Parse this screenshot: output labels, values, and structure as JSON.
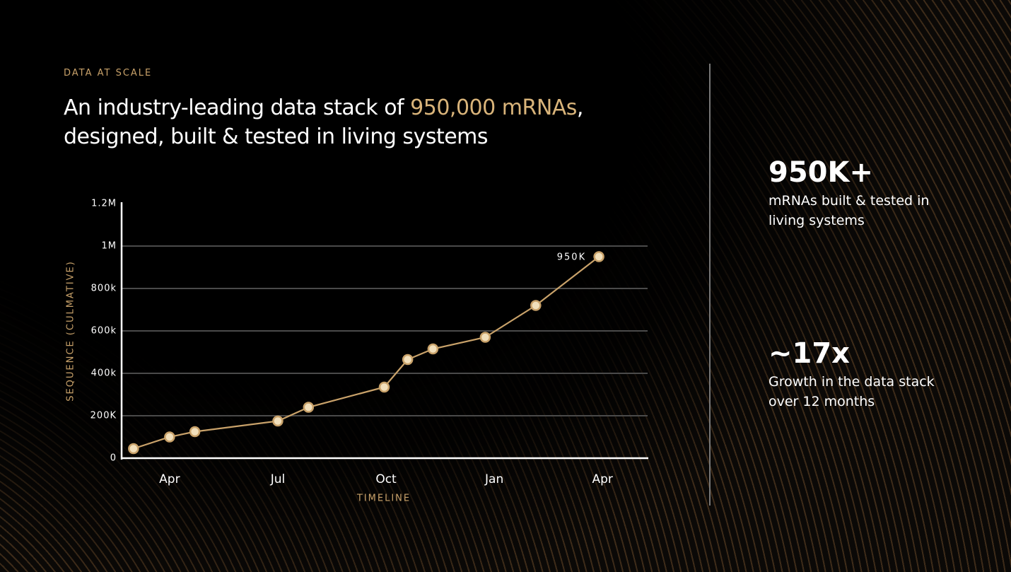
{
  "eyebrow": "DATA AT SCALE",
  "headline": {
    "lead": "An industry-leading data stack of ",
    "highlight": "950,000 mRNAs",
    "tail": ",",
    "line2": "designed, built & tested in living systems"
  },
  "stats": [
    {
      "value": "950K+",
      "text": "mRNAs built & tested in living systems"
    },
    {
      "value": "~17x",
      "text": "Growth in the data stack over 12 months"
    }
  ],
  "chart_data": {
    "type": "line",
    "x": [
      -1,
      0,
      0.7,
      3,
      3.85,
      5.95,
      6.6,
      7.3,
      8.75,
      10.15,
      11.9
    ],
    "values": [
      45000,
      100000,
      125000,
      175000,
      240000,
      335000,
      465000,
      515000,
      570000,
      720000,
      950000
    ],
    "value_labels": [
      null,
      null,
      null,
      null,
      null,
      null,
      null,
      null,
      null,
      null,
      "950K"
    ],
    "color": "#c9a26a",
    "xlabel": "TIMELINE",
    "ylabel": "SEQUENCE (CULMATIVE)",
    "xlim": [
      -1.33,
      13.25
    ],
    "xticks": [
      {
        "value": 0,
        "label": "Apr"
      },
      {
        "value": 3,
        "label": "Jul"
      },
      {
        "value": 6,
        "label": "Oct"
      },
      {
        "value": 9,
        "label": "Jan"
      },
      {
        "value": 12,
        "label": "Apr"
      }
    ],
    "ylim": [
      0,
      1200000
    ],
    "yticks": [
      0,
      {
        "value": 200000,
        "label": "200K"
      },
      {
        "value": 400000,
        "label": "400k"
      },
      {
        "value": 600000,
        "label": "600k"
      },
      {
        "value": 800000,
        "label": "800k"
      },
      {
        "value": 1000000,
        "label": "1M"
      },
      {
        "value": 1200000,
        "label": "1.2M"
      }
    ],
    "grid": true
  }
}
